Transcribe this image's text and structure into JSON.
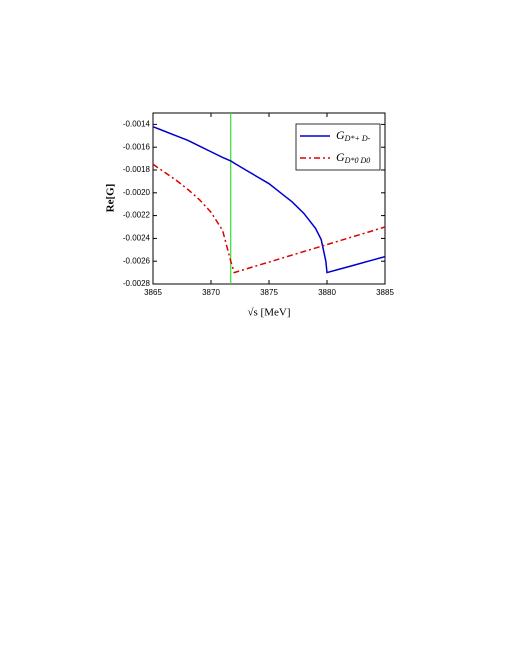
{
  "chart_data": {
    "type": "line",
    "xlabel": "√s   [MeV]",
    "ylabel": "Re[G]",
    "x": [
      3865,
      3866,
      3867,
      3868,
      3869,
      3870,
      3871,
      3871.7,
      3872,
      3873,
      3874,
      3875,
      3876,
      3877,
      3878,
      3879,
      3879.5,
      3879.9,
      3880,
      3881,
      3882,
      3883,
      3884,
      3885
    ],
    "series": [
      {
        "name": "G",
        "subscript": "D*+ D-",
        "color": "#0000cc",
        "dash": "none",
        "values": [
          -0.00142,
          -0.00146,
          -0.0015,
          -0.00154,
          -0.00159,
          -0.00164,
          -0.00169,
          -0.00172,
          -0.00174,
          -0.0018,
          -0.00186,
          -0.00192,
          -0.002,
          -0.00208,
          -0.00218,
          -0.00231,
          -0.00241,
          -0.0026,
          -0.0027,
          -0.002672,
          -0.002644,
          -0.002616,
          -0.002588,
          -0.00256
        ]
      },
      {
        "name": "G",
        "subscript": "D*0 D0",
        "color": "#dd0000",
        "dash": "6 3 2 3",
        "values": [
          -0.00175,
          -0.00182,
          -0.00189,
          -0.00197,
          -0.00206,
          -0.00217,
          -0.00233,
          -0.0026,
          -0.0027,
          -0.002669,
          -0.002638,
          -0.002608,
          -0.002577,
          -0.002546,
          -0.002515,
          -0.002485,
          -0.002469,
          -0.002457,
          -0.002454,
          -0.002423,
          -0.002392,
          -0.002362,
          -0.002331,
          -0.0023
        ]
      }
    ],
    "vline": {
      "x": 3871.7,
      "color": "#33dd33"
    },
    "xlim": [
      3865,
      3885
    ],
    "xticks": [
      3865,
      3870,
      3875,
      3880,
      3885
    ],
    "ylim": [
      -0.0028,
      -0.0013
    ],
    "yticks": [
      -0.0014,
      -0.0016,
      -0.0018,
      {
        "value": -0.002,
        "label": "-0.0020"
      },
      -0.0022,
      -0.0024,
      -0.0026,
      -0.0028
    ],
    "legend": "upper right"
  }
}
